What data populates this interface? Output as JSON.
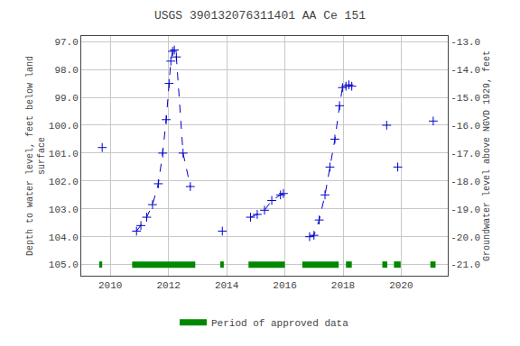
{
  "chart_data": {
    "type": "line",
    "title": "USGS 390132076311401 AA Ce 151",
    "ylabel": "Depth to water level, feet below land\nsurface",
    "y2label": "Groundwater level above NGVD 1929, feet",
    "xlim": [
      2009.0,
      2021.6
    ],
    "xticks": [
      2010,
      2012,
      2014,
      2016,
      2018,
      2020
    ],
    "ylim": [
      105.4,
      96.8
    ],
    "yticks": [
      {
        "value": 97.0,
        "label": "97.0"
      },
      {
        "value": 98.0,
        "label": "98.0"
      },
      {
        "value": 99.0,
        "label": "99.0"
      },
      {
        "value": 100.0,
        "label": "100.0"
      },
      {
        "value": 101.0,
        "label": "101.0"
      },
      {
        "value": 102.0,
        "label": "102.0"
      },
      {
        "value": 103.0,
        "label": "103.0"
      },
      {
        "value": 104.0,
        "label": "104.0"
      },
      {
        "value": 105.0,
        "label": "105.0"
      }
    ],
    "y2lim": [
      -21.4,
      -12.8
    ],
    "y2ticks": [
      {
        "value": -13.0,
        "label": "-13.0"
      },
      {
        "value": -14.0,
        "label": "-14.0"
      },
      {
        "value": -15.0,
        "label": "-15.0"
      },
      {
        "value": -16.0,
        "label": "-16.0"
      },
      {
        "value": -17.0,
        "label": "-17.0"
      },
      {
        "value": -18.0,
        "label": "-18.0"
      },
      {
        "value": -19.0,
        "label": "-19.0"
      },
      {
        "value": -20.0,
        "label": "-20.0"
      },
      {
        "value": -21.0,
        "label": "-21.0"
      }
    ],
    "grid": true,
    "legend": "bottom",
    "series": [
      {
        "color": "#0000cc",
        "line_style": "dashed",
        "marker": "plus",
        "x": [
          2009.72
        ],
        "values": [
          100.8
        ]
      },
      {
        "color": "#0000cc",
        "line_style": "dashed",
        "marker": "plus",
        "x": [
          2010.9,
          2011.05,
          2011.25,
          2011.45,
          2011.65,
          2011.8,
          2011.92,
          2012.02,
          2012.08,
          2012.14,
          2012.2,
          2012.27,
          2012.5,
          2012.75
        ],
        "values": [
          103.8,
          103.6,
          103.3,
          102.85,
          102.1,
          101.0,
          99.8,
          98.5,
          97.7,
          97.35,
          97.3,
          97.55,
          101.0,
          102.2
        ]
      },
      {
        "color": "#0000cc",
        "line_style": "dashed",
        "marker": "plus",
        "x": [
          2013.85
        ],
        "values": [
          103.8
        ]
      },
      {
        "color": "#0000cc",
        "line_style": "dashed",
        "marker": "plus",
        "x": [
          2014.82,
          2015.05,
          2015.3,
          2015.55,
          2015.85,
          2015.95
        ],
        "values": [
          103.3,
          103.2,
          103.05,
          102.7,
          102.5,
          102.45
        ]
      },
      {
        "color": "#0000cc",
        "line_style": "dashed",
        "marker": "plus",
        "x": [
          2016.85,
          2017.0,
          2017.18,
          2017.38,
          2017.55,
          2017.72,
          2017.88,
          2017.98,
          2018.1,
          2018.2,
          2018.3
        ],
        "values": [
          104.0,
          103.95,
          103.4,
          102.5,
          101.5,
          100.5,
          99.3,
          98.65,
          98.6,
          98.55,
          98.6
        ]
      },
      {
        "color": "#0000cc",
        "line_style": "dashed",
        "marker": "plus",
        "x": [
          2019.5
        ],
        "values": [
          100.0
        ]
      },
      {
        "color": "#0000cc",
        "line_style": "dashed",
        "marker": "plus",
        "x": [
          2019.88
        ],
        "values": [
          101.5
        ]
      },
      {
        "color": "#0000cc",
        "line_style": "dashed",
        "marker": "plus",
        "x": [
          2021.1
        ],
        "values": [
          99.85
        ]
      },
      {
        "name": "Period of approved data",
        "type": "bar",
        "orientation": "horizontal",
        "color": "#008800",
        "y": 105.0,
        "ranges": [
          [
            2009.62,
            2009.72
          ],
          [
            2010.75,
            2012.92
          ],
          [
            2013.78,
            2013.9
          ],
          [
            2014.75,
            2016.0
          ],
          [
            2016.6,
            2017.85
          ],
          [
            2018.1,
            2018.3
          ],
          [
            2019.35,
            2019.52
          ],
          [
            2019.75,
            2019.98
          ],
          [
            2021.0,
            2021.18
          ]
        ]
      }
    ]
  }
}
